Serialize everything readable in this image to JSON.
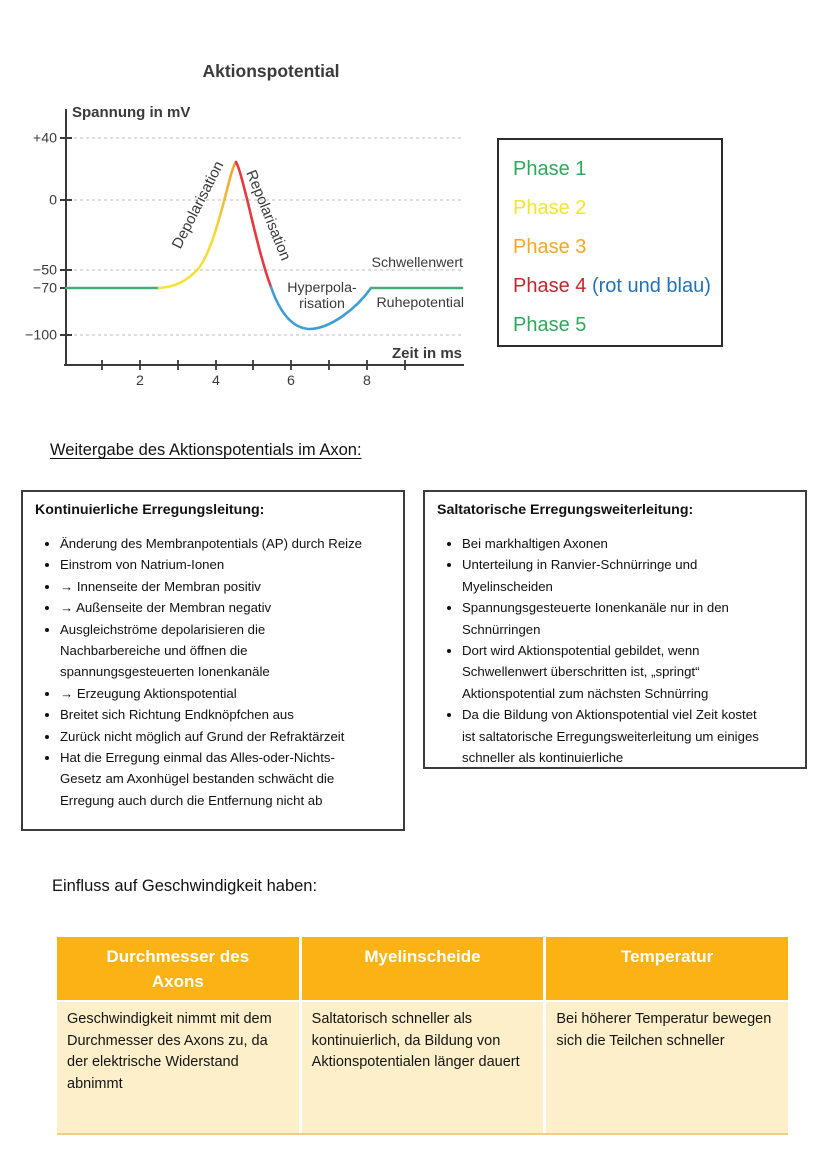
{
  "chart": {
    "title": "Aktionspotential",
    "y_axis_label": "Spannung in mV",
    "x_axis_label": "Zeit in ms",
    "y_ticks": [
      "+40",
      "0",
      "−50",
      "−70",
      "−100"
    ],
    "x_ticks": [
      "2",
      "4",
      "6",
      "8"
    ],
    "labels": {
      "depolarisation": "Depolarisation",
      "repolarisation": "Repolarisation",
      "schwellenwert": "Schwellenwert",
      "hyperpolarisation_line1": "Hyperpola-",
      "hyperpolarisation_line2": "risation",
      "ruhepotential": "Ruhepotential"
    },
    "colors": {
      "resting_green": "#44AE78",
      "slow_depolarisation_yellow": "#F5E33C",
      "depolarisation_orange": "#EFA030",
      "repolarisation_red": "#E23B41",
      "hyperpolarisation_blue": "#3D9DD6",
      "axis_gray": "#3a3a3a",
      "grid_gray": "#c9c9c9"
    }
  },
  "chart_data": {
    "type": "line",
    "title": "Aktionspotential",
    "xlabel": "Zeit in ms",
    "ylabel": "Spannung in mV",
    "xlim": [
      0,
      10.5
    ],
    "ylim": [
      -110,
      45
    ],
    "x_ticks": [
      2,
      4,
      6,
      8
    ],
    "y_ticks": [
      40,
      0,
      -50,
      -70,
      -100
    ],
    "grid": "dashed horizontal at +40, 0, -50, -100",
    "legend_position": "none",
    "series": [
      {
        "name": "Ruhepotential (Phase 1)",
        "color": "#44AE78",
        "points": [
          [
            0,
            -70
          ],
          [
            2.5,
            -70
          ]
        ]
      },
      {
        "name": "Langsame Depolarisation (Phase 2)",
        "color": "#F5E33C",
        "points": [
          [
            2.5,
            -70
          ],
          [
            3.5,
            -50
          ]
        ]
      },
      {
        "name": "Depolarisation (Phase 3)",
        "color": "#EFA030",
        "points": [
          [
            3.5,
            -50
          ],
          [
            4.2,
            0
          ],
          [
            4.5,
            25
          ]
        ]
      },
      {
        "name": "Repolarisation (Phase 4 rot)",
        "color": "#E23B41",
        "points": [
          [
            4.5,
            25
          ],
          [
            5.1,
            -30
          ],
          [
            5.4,
            -70
          ]
        ]
      },
      {
        "name": "Hyperpolarisation (Phase 4 blau)",
        "color": "#3D9DD6",
        "points": [
          [
            5.4,
            -70
          ],
          [
            6.8,
            -92
          ],
          [
            8.1,
            -70
          ]
        ]
      },
      {
        "name": "Ruhepotential (Phase 5)",
        "color": "#44AE78",
        "points": [
          [
            8.1,
            -70
          ],
          [
            10.4,
            -70
          ]
        ]
      }
    ],
    "annotations": [
      "Depolarisation",
      "Repolarisation",
      "Schwellenwert",
      "Hyperpola-risation",
      "Ruhepotential"
    ]
  },
  "legend": {
    "items": [
      {
        "label": "Phase 1",
        "color": "#2FA85C",
        "suffix": "",
        "suffix_color": ""
      },
      {
        "label": "Phase 2",
        "color": "#F2E42F",
        "suffix": "",
        "suffix_color": ""
      },
      {
        "label": "Phase 3",
        "color": "#F5A623",
        "suffix": "",
        "suffix_color": ""
      },
      {
        "label": "Phase 4",
        "color": "#C4262C",
        "suffix": "(rot und blau)",
        "suffix_color": "#2172B8"
      },
      {
        "label": "Phase 5",
        "color": "#2FA85C",
        "suffix": "",
        "suffix_color": ""
      }
    ]
  },
  "section_heading": "Weitergabe des Aktionspotentials im Axon:",
  "boxes": {
    "left": {
      "title": "Kontinuierliche Erregungsleitung:",
      "bullets": [
        "Änderung des Membranpotentials (AP) durch Reize",
        "Einstrom von Natrium-Ionen",
        "→ Innenseite der Membran positiv",
        "→ Außenseite der Membran negativ",
        "Ausgleichströme depolarisieren die Nachbarbereiche und öffnen die spannungsgesteuerten Ionenkanäle",
        "→ Erzeugung Aktionspotential",
        "Breitet sich Richtung Endknöpfchen aus",
        "Zurück nicht möglich auf Grund der Refraktärzeit",
        "Hat die Erregung einmal das Alles-oder-Nichts-Gesetz am Axonhügel bestanden schwächt die Erregung auch durch die Entfernung nicht ab"
      ]
    },
    "right": {
      "title": "Saltatorische Erregungsweiterleitung:",
      "bullets": [
        "Bei markhaltigen Axonen",
        "Unterteilung in Ranvier-Schnürringe und Myelinscheiden",
        "Spannungsgesteuerte Ionenkanäle nur in den Schnürringen",
        "Dort wird Aktionspotential gebildet, wenn Schwellenwert überschritten ist, „springt“ Aktionspotential zum nächsten Schnürring",
        "Da die Bildung von Aktionspotential viel Zeit kostet ist saltatorische Erregungsweiterleitung um einiges schneller als kontinuierliche"
      ]
    }
  },
  "speed_heading": "Einfluss auf Geschwindigkeit haben:",
  "table": {
    "header_bg": "#FBB214",
    "header_text_color": "#ffffff",
    "body_bg": "#FCEFC9",
    "columns": [
      {
        "header": "Durchmesser des Axons",
        "cell": "Geschwindigkeit nimmt mit dem Durchmesser des Axons zu, da der elektrische Widerstand abnimmt"
      },
      {
        "header": "Myelinscheide",
        "cell": "Saltatorisch schneller als kontinuierlich, da Bildung von Aktionspotentialen länger dauert"
      },
      {
        "header": "Temperatur",
        "cell": "Bei höherer Temperatur bewegen sich die Teilchen schneller"
      }
    ]
  }
}
